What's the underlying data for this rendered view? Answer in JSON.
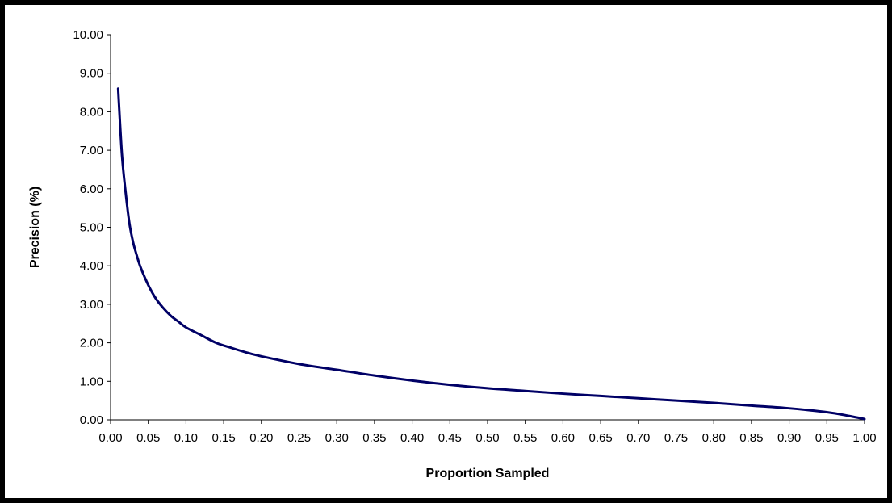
{
  "chart_data": {
    "type": "line",
    "title": "",
    "xlabel": "Proportion Sampled",
    "ylabel": "Precision (%)",
    "xlim": [
      0,
      1
    ],
    "ylim": [
      0,
      10
    ],
    "x_ticks": [
      "0.00",
      "0.05",
      "0.10",
      "0.15",
      "0.20",
      "0.25",
      "0.30",
      "0.35",
      "0.40",
      "0.45",
      "0.50",
      "0.55",
      "0.60",
      "0.65",
      "0.70",
      "0.75",
      "0.80",
      "0.85",
      "0.90",
      "0.95",
      "1.00"
    ],
    "y_ticks": [
      "0.00",
      "1.00",
      "2.00",
      "3.00",
      "4.00",
      "5.00",
      "6.00",
      "7.00",
      "8.00",
      "9.00",
      "10.00"
    ],
    "grid": false,
    "legend": "none",
    "series": [
      {
        "color": "#000066",
        "x": [
          0.01,
          0.015,
          0.02,
          0.025,
          0.03,
          0.035,
          0.04,
          0.05,
          0.06,
          0.07,
          0.08,
          0.09,
          0.1,
          0.12,
          0.14,
          0.16,
          0.18,
          0.2,
          0.25,
          0.3,
          0.35,
          0.4,
          0.45,
          0.5,
          0.55,
          0.6,
          0.65,
          0.7,
          0.75,
          0.8,
          0.85,
          0.9,
          0.95,
          0.98,
          1.0
        ],
        "y": [
          8.6,
          6.9,
          5.9,
          5.1,
          4.6,
          4.25,
          3.95,
          3.5,
          3.15,
          2.9,
          2.7,
          2.55,
          2.4,
          2.2,
          2.0,
          1.87,
          1.75,
          1.65,
          1.45,
          1.3,
          1.15,
          1.02,
          0.91,
          0.82,
          0.75,
          0.68,
          0.62,
          0.56,
          0.5,
          0.44,
          0.37,
          0.3,
          0.2,
          0.1,
          0.02
        ]
      }
    ]
  }
}
